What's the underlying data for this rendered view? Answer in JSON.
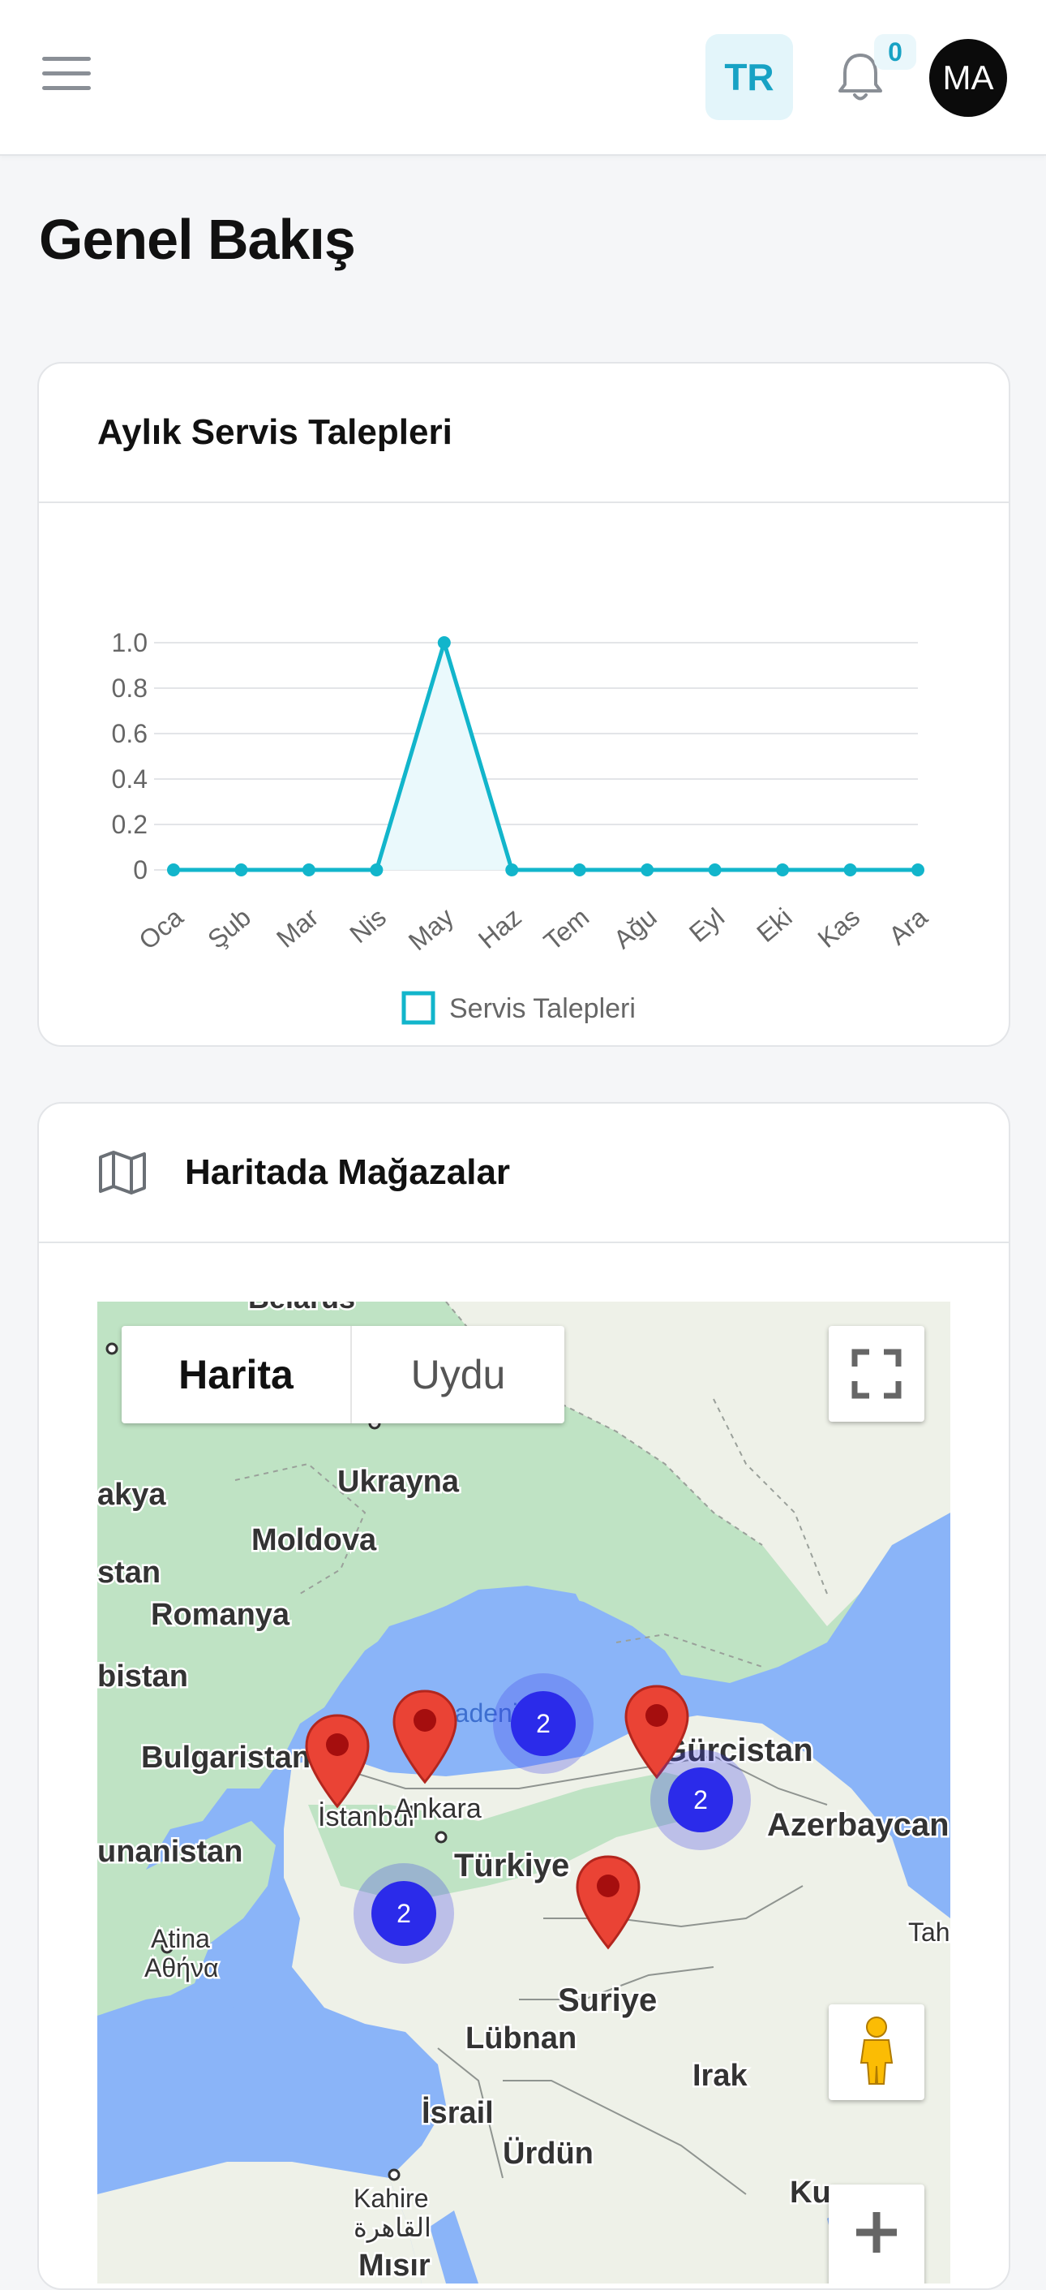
{
  "header": {
    "lang_label": "TR",
    "notif_count": "0",
    "avatar_initials": "MA"
  },
  "page": {
    "title": "Genel Bakış"
  },
  "chart_card": {
    "title": "Aylık Servis Talepleri"
  },
  "chart_data": {
    "type": "line",
    "categories": [
      "Oca",
      "Şub",
      "Mar",
      "Nis",
      "May",
      "Haz",
      "Tem",
      "Ağu",
      "Eyl",
      "Eki",
      "Kas",
      "Ara"
    ],
    "series": [
      {
        "name": "Servis Talepleri",
        "values": [
          0,
          0,
          0,
          0,
          1,
          0,
          0,
          0,
          0,
          0,
          0,
          0
        ],
        "color": "#12b5cb"
      }
    ],
    "yticks": [
      "0",
      "0.2",
      "0.4",
      "0.6",
      "0.8",
      "1.0"
    ],
    "ylim": [
      0,
      1
    ],
    "grid": true,
    "legend": "bottom",
    "fill": "#eaf9fc"
  },
  "map_card": {
    "title": "Haritada Mağazalar",
    "map_type_map": "Harita",
    "map_type_satellite": "Uydu",
    "labels": {
      "belarus": "Belarus",
      "ukrayna": "Ukrayna",
      "moldova": "Moldova",
      "romanya": "Romanya",
      "bulgaristan": "Bulgaristan",
      "istanbul": "İstanbul",
      "ankara": "Ankara",
      "turkiye": "Türkiye",
      "gurcistan": "Gürcistan",
      "azerbaycan": "Azerbaycan",
      "yunanistan": "unanistan",
      "atina": "Atina",
      "atina_gr": "Αθήνα",
      "suriye": "Suriye",
      "lubnan": "Lübnan",
      "irak": "Irak",
      "israil": "İsrail",
      "urdun": "Ürdün",
      "kahire": "Kahire",
      "kahire_ar": "القاهرة",
      "misir": "Mısır",
      "akya": "akya",
      "stan": "stan",
      "bistan": "bistan",
      "karadeniz": "radeni",
      "ku": "Ku",
      "tah": "Tah"
    },
    "clusters": [
      "2",
      "2",
      "2"
    ],
    "pins": 4,
    "colors": {
      "land": "#eef1e8",
      "water": "#8ab4f8",
      "forest": "#bfe3c4",
      "pin": "#ea4335",
      "cluster": "#2b2bea"
    }
  },
  "icons": {
    "menu": "hamburger-icon",
    "bell": "bell-icon",
    "map": "map-icon",
    "fullscreen": "fullscreen-icon",
    "pegman": "pegman-icon",
    "zoom_in": "plus-icon",
    "pin": "map-pin-icon"
  }
}
